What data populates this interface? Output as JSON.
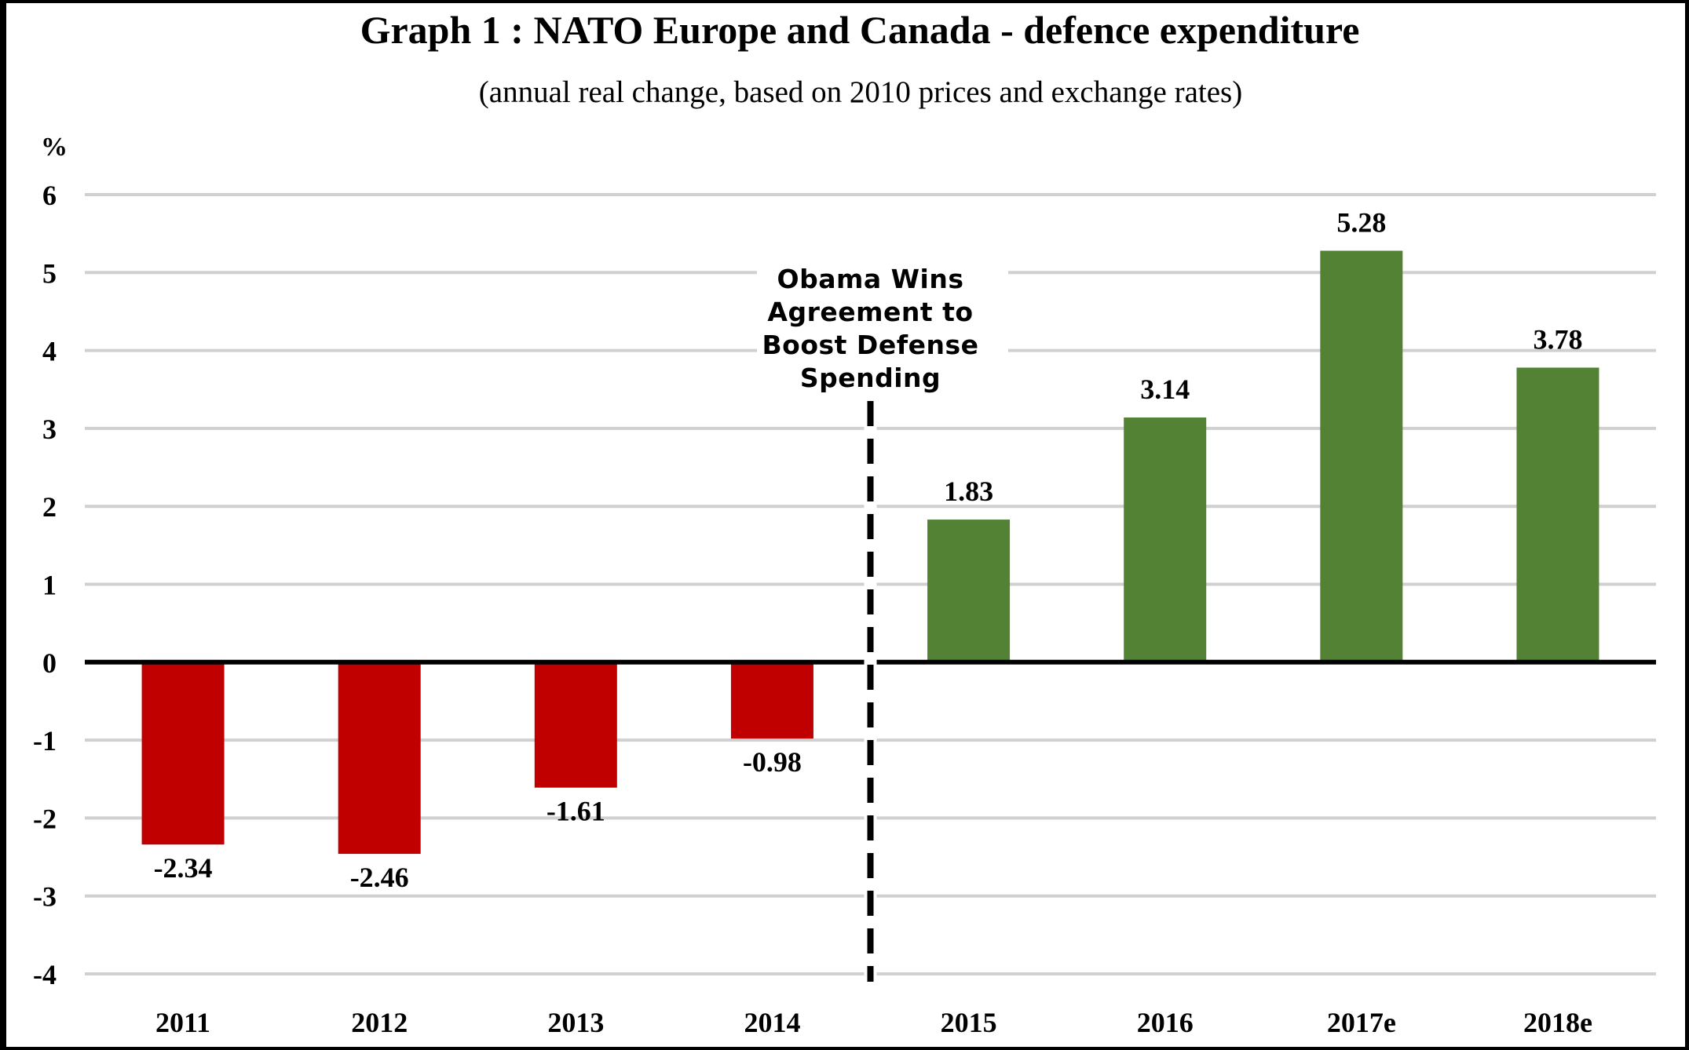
{
  "chart_data": {
    "type": "bar",
    "title": "Graph 1 : NATO Europe and Canada - defence expenditure",
    "subtitle": "(annual real change, based on 2010 prices and exchange rates)",
    "xlabel": "",
    "ylabel": "%",
    "categories": [
      "2011",
      "2012",
      "2013",
      "2014",
      "2015",
      "2016",
      "2017e",
      "2018e"
    ],
    "values": [
      -2.34,
      -2.46,
      -1.61,
      -0.98,
      1.83,
      3.14,
      5.28,
      3.78
    ],
    "data_labels": [
      "-2.34",
      "-2.46",
      "-1.61",
      "-0.98",
      "1.83",
      "3.14",
      "5.28",
      "3.78"
    ],
    "ylim": [
      -4,
      6
    ],
    "yticks": [
      6,
      5,
      4,
      3,
      2,
      1,
      0,
      -1,
      -2,
      -3,
      -4
    ],
    "ytick_labels": [
      "6",
      "5",
      "4",
      "3",
      "2",
      "1",
      "0",
      "-1",
      "-2",
      "-3",
      "-4"
    ],
    "grid": true,
    "legend": "none",
    "colors": {
      "negative": "#C00000",
      "positive": "#548235",
      "gridline": "#D0D0D0",
      "zero_line": "#000000",
      "annotation_line": "#000000"
    },
    "annotation": {
      "text_lines": [
        "Obama Wins",
        "Agreement to",
        "Boost Defense",
        "Spending"
      ],
      "position_between": [
        "2014",
        "2015"
      ],
      "line_style": "dashed"
    }
  }
}
